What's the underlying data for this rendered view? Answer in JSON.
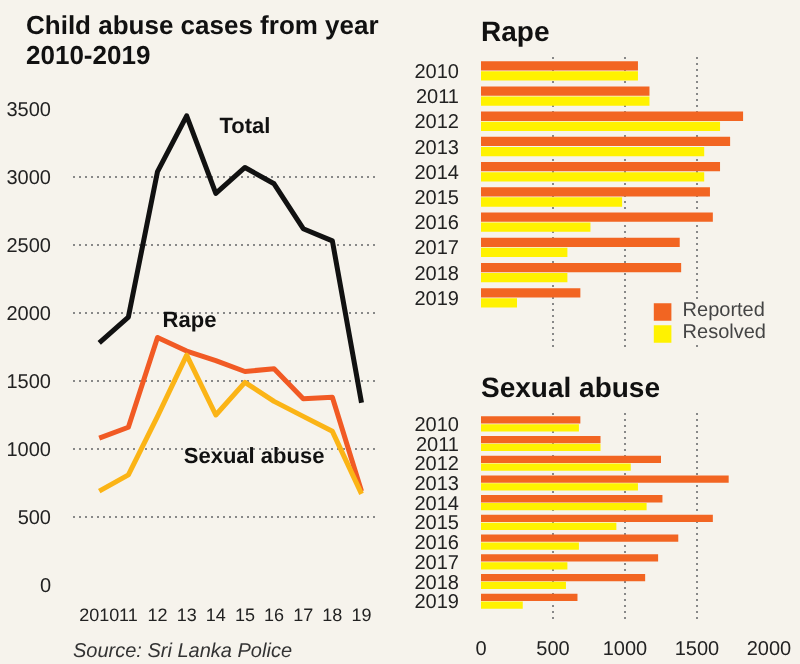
{
  "chart_data": [
    {
      "type": "line",
      "title": "Child abuse cases from year 2010-2019",
      "categories": [
        "2010",
        "11",
        "12",
        "13",
        "14",
        "15",
        "16",
        "17",
        "18",
        "19"
      ],
      "ylim": [
        0,
        3500
      ],
      "yticks": [
        0,
        500,
        1000,
        1500,
        2000,
        2500,
        3000,
        3500
      ],
      "grid": "y",
      "legend": false,
      "annotations": [
        "Source: Sri Lanka Police"
      ],
      "series": [
        {
          "name": "Total",
          "color": "#111111",
          "values": [
            1780,
            1970,
            3040,
            3450,
            2880,
            3070,
            2950,
            2620,
            2530,
            1340
          ]
        },
        {
          "name": "Rape",
          "color": "#f15a24",
          "values": [
            1080,
            1160,
            1820,
            1720,
            1650,
            1570,
            1590,
            1370,
            1380,
            690
          ]
        },
        {
          "name": "Sexual abuse",
          "color": "#fbb416",
          "values": [
            690,
            810,
            1240,
            1690,
            1250,
            1490,
            1350,
            1240,
            1130,
            670
          ]
        }
      ]
    },
    {
      "type": "bar",
      "orientation": "horizontal",
      "title": "Rape",
      "categories": [
        "2010",
        "2011",
        "2012",
        "2013",
        "2014",
        "2015",
        "2016",
        "2017",
        "2018",
        "2019"
      ],
      "xlim": [
        0,
        2000
      ],
      "xticks": [
        0,
        500,
        1000,
        1500,
        2000
      ],
      "grid": "x",
      "legend": "bottom right",
      "tick_labels": "y",
      "series": [
        {
          "name": "Reported",
          "color": "#f26522",
          "values": [
            1090,
            1170,
            1820,
            1730,
            1660,
            1590,
            1610,
            1380,
            1390,
            690
          ]
        },
        {
          "name": "Resolved",
          "color": "#fff200",
          "values": [
            1090,
            1170,
            1660,
            1550,
            1550,
            980,
            760,
            600,
            600,
            250
          ]
        }
      ]
    },
    {
      "type": "bar",
      "orientation": "horizontal",
      "title": "Sexual abuse",
      "categories": [
        "2010",
        "2011",
        "2012",
        "2013",
        "2014",
        "2015",
        "2016",
        "2017",
        "2018",
        "2019"
      ],
      "xlim": [
        0,
        2000
      ],
      "xticks": [
        0,
        500,
        1000,
        1500,
        2000
      ],
      "grid": "x",
      "legend": false,
      "series": [
        {
          "name": "Reported",
          "color": "#f26522",
          "values": [
            690,
            830,
            1250,
            1720,
            1260,
            1610,
            1370,
            1230,
            1140,
            670
          ]
        },
        {
          "name": "Resolved",
          "color": "#fff200",
          "values": [
            680,
            830,
            1040,
            1090,
            1150,
            940,
            680,
            600,
            590,
            290
          ]
        }
      ]
    }
  ]
}
